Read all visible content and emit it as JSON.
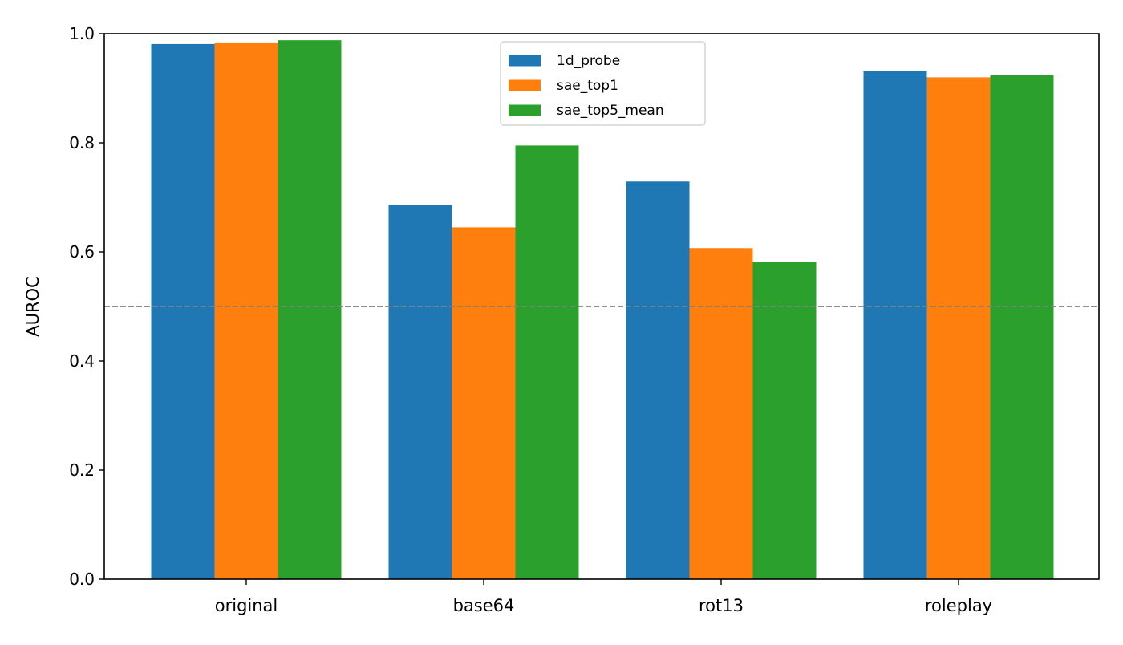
{
  "chart_data": {
    "type": "bar",
    "categories": [
      "original",
      "base64",
      "rot13",
      "roleplay"
    ],
    "series": [
      {
        "name": "1d_probe",
        "color": "#1f77b4",
        "values": [
          0.981,
          0.686,
          0.729,
          0.931
        ]
      },
      {
        "name": "sae_top1",
        "color": "#ff7f0e",
        "values": [
          0.984,
          0.645,
          0.607,
          0.92
        ]
      },
      {
        "name": "sae_top5_mean",
        "color": "#2ca02c",
        "values": [
          0.988,
          0.795,
          0.582,
          0.925
        ]
      }
    ],
    "title": "",
    "xlabel": "",
    "ylabel": "AUROC",
    "ylim": [
      0,
      1.0
    ],
    "yticks": [
      "0.0",
      "0.2",
      "0.4",
      "0.6",
      "0.8",
      "1.0"
    ],
    "reference_line": {
      "y": 0.5,
      "style": "dashed",
      "color": "#808080"
    },
    "grid": false,
    "legend_position": "top-center"
  }
}
